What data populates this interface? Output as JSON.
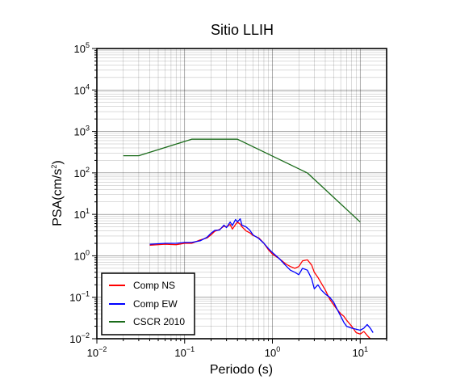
{
  "chart_data": {
    "type": "line",
    "title": "Sitio LLIH",
    "xlabel": "Periodo (s)",
    "ylabel_base": "PSA(cm/s",
    "ylabel_exp": "2",
    "ylabel_tail": ")",
    "x_scale": "log",
    "y_scale": "log",
    "xlim": [
      0.01,
      20
    ],
    "ylim": [
      0.01,
      100000
    ],
    "grid": true,
    "legend_position": "bottom-left",
    "x_ticks": [
      {
        "value": 0.01,
        "base": "10",
        "exp": "−2"
      },
      {
        "value": 0.1,
        "base": "10",
        "exp": "−1"
      },
      {
        "value": 1,
        "base": "10",
        "exp": "0"
      },
      {
        "value": 10,
        "base": "10",
        "exp": "1"
      }
    ],
    "y_ticks": [
      {
        "value": 0.01,
        "base": "10",
        "exp": "−2"
      },
      {
        "value": 0.1,
        "base": "10",
        "exp": "−1"
      },
      {
        "value": 1,
        "base": "10",
        "exp": "0"
      },
      {
        "value": 10,
        "base": "10",
        "exp": "1"
      },
      {
        "value": 100,
        "base": "10",
        "exp": "2"
      },
      {
        "value": 1000,
        "base": "10",
        "exp": "3"
      },
      {
        "value": 10000,
        "base": "10",
        "exp": "4"
      },
      {
        "value": 100000,
        "base": "10",
        "exp": "5"
      }
    ],
    "series": [
      {
        "name": "Comp NS",
        "color": "#ff0000",
        "x": [
          0.04,
          0.06,
          0.08,
          0.1,
          0.12,
          0.15,
          0.18,
          0.2,
          0.22,
          0.25,
          0.28,
          0.3,
          0.33,
          0.35,
          0.38,
          0.4,
          0.43,
          0.45,
          0.5,
          0.55,
          0.6,
          0.7,
          0.8,
          0.9,
          1.0,
          1.2,
          1.4,
          1.6,
          1.8,
          2.0,
          2.2,
          2.5,
          2.8,
          3.0,
          3.3,
          3.6,
          4.0,
          4.5,
          5.0,
          5.5,
          6.0,
          6.5,
          7.0,
          8.0,
          9.0,
          10.0,
          11.0,
          12.0,
          13.0
        ],
        "values": [
          1.8,
          1.9,
          1.85,
          2.0,
          2.0,
          2.4,
          2.7,
          3.2,
          3.9,
          4.3,
          5.2,
          5.0,
          5.7,
          4.4,
          5.7,
          6.5,
          5.8,
          5.0,
          4.0,
          3.6,
          3.1,
          2.7,
          2.0,
          1.4,
          1.1,
          0.85,
          0.65,
          0.55,
          0.5,
          0.55,
          0.75,
          0.8,
          0.6,
          0.4,
          0.3,
          0.22,
          0.15,
          0.09,
          0.065,
          0.05,
          0.04,
          0.035,
          0.028,
          0.02,
          0.014,
          0.013,
          0.015,
          0.012,
          0.01
        ]
      },
      {
        "name": "Comp EW",
        "color": "#0000ff",
        "x": [
          0.04,
          0.06,
          0.08,
          0.1,
          0.12,
          0.15,
          0.18,
          0.2,
          0.22,
          0.25,
          0.28,
          0.3,
          0.33,
          0.35,
          0.38,
          0.4,
          0.43,
          0.45,
          0.5,
          0.55,
          0.6,
          0.7,
          0.8,
          0.9,
          1.0,
          1.2,
          1.4,
          1.6,
          1.8,
          2.0,
          2.2,
          2.5,
          2.8,
          3.0,
          3.3,
          3.6,
          4.0,
          4.5,
          5.0,
          5.5,
          6.0,
          6.5,
          7.0,
          8.0,
          9.0,
          10.0,
          11.0,
          12.0,
          13.0,
          14.0
        ],
        "values": [
          1.9,
          2.0,
          2.0,
          2.1,
          2.1,
          2.3,
          2.8,
          3.5,
          4.1,
          4.2,
          5.5,
          4.8,
          6.5,
          5.4,
          7.5,
          6.6,
          7.8,
          5.5,
          5.0,
          4.2,
          3.2,
          2.6,
          2.0,
          1.5,
          1.2,
          0.85,
          0.6,
          0.45,
          0.4,
          0.35,
          0.5,
          0.45,
          0.28,
          0.16,
          0.2,
          0.15,
          0.12,
          0.1,
          0.075,
          0.05,
          0.035,
          0.025,
          0.02,
          0.018,
          0.017,
          0.016,
          0.018,
          0.022,
          0.018,
          0.014
        ]
      },
      {
        "name": "CSCR 2010",
        "color": "#1a6b1a",
        "x": [
          0.02,
          0.03,
          0.12,
          0.4,
          2.5,
          10
        ],
        "values": [
          260,
          260,
          650,
          650,
          100,
          6.5
        ]
      }
    ]
  }
}
